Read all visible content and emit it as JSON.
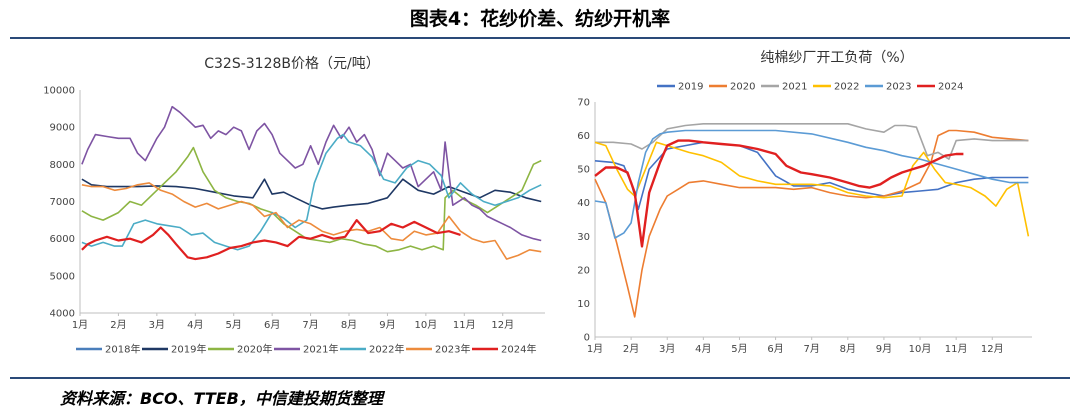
{
  "figure_title": "图表4：花纱价差、纺纱开机率",
  "source": "资料来源：BCO、TTEB，中信建投期货整理",
  "chart_data": [
    {
      "type": "line",
      "title": "C32S-3128B价格（元/吨）",
      "ylim": [
        4000,
        10000
      ],
      "yticks": [
        4000,
        5000,
        6000,
        7000,
        8000,
        9000,
        10000
      ],
      "xticks": [
        "1月",
        "2月",
        "3月",
        "4月",
        "5月",
        "6月",
        "7月",
        "8月",
        "9月",
        "10月",
        "11月",
        "12月"
      ],
      "xlim": [
        1,
        13.1
      ],
      "grid": false,
      "legend": "bottom",
      "series": [
        {
          "name": "2018年",
          "color": "#4a7ebb",
          "x": [],
          "y": []
        },
        {
          "name": "2019年",
          "color": "#1f3864",
          "x": [
            1.05,
            1.3,
            1.7,
            2.0,
            2.5,
            3.0,
            3.5,
            4.0,
            4.5,
            5.0,
            5.5,
            5.8,
            6.0,
            6.3,
            6.6,
            7.0,
            7.3,
            7.6,
            8.0,
            8.5,
            9.0,
            9.4,
            9.8,
            10.2,
            10.6,
            11.0,
            11.4,
            11.8,
            12.2,
            12.6,
            13.0
          ],
          "y": [
            7600,
            7450,
            7400,
            7400,
            7400,
            7420,
            7400,
            7350,
            7250,
            7150,
            7100,
            7600,
            7200,
            7250,
            7100,
            6900,
            6800,
            6850,
            6900,
            6950,
            7100,
            7600,
            7300,
            7200,
            7400,
            7250,
            7100,
            7300,
            7250,
            7100,
            7000
          ]
        },
        {
          "name": "2020年",
          "color": "#8db543",
          "x": [
            1.05,
            1.3,
            1.6,
            2.0,
            2.3,
            2.6,
            2.9,
            3.2,
            3.5,
            3.8,
            3.95,
            4.2,
            4.5,
            4.8,
            5.1,
            5.4,
            5.7,
            6.0,
            6.3,
            6.6,
            6.9,
            7.2,
            7.5,
            7.8,
            8.1,
            8.4,
            8.7,
            9.0,
            9.3,
            9.6,
            9.9,
            10.2,
            10.45,
            10.5,
            10.7,
            11.0,
            11.3,
            11.6,
            11.9,
            12.2,
            12.5,
            12.8,
            13.0
          ],
          "y": [
            6750,
            6600,
            6500,
            6700,
            7000,
            6900,
            7200,
            7500,
            7800,
            8200,
            8450,
            7800,
            7300,
            7100,
            7000,
            6950,
            6800,
            6700,
            6400,
            6200,
            6000,
            5950,
            5900,
            6000,
            5950,
            5850,
            5800,
            5650,
            5700,
            5800,
            5700,
            5800,
            5700,
            7100,
            7300,
            7050,
            6900,
            6700,
            6900,
            7100,
            7300,
            8000,
            8100
          ]
        },
        {
          "name": "2021年",
          "color": "#7e54a3",
          "x": [
            1.05,
            1.2,
            1.4,
            1.7,
            2.0,
            2.3,
            2.5,
            2.7,
            3.0,
            3.2,
            3.4,
            3.6,
            3.8,
            4.0,
            4.2,
            4.4,
            4.6,
            4.8,
            5.0,
            5.2,
            5.4,
            5.6,
            5.8,
            6.0,
            6.2,
            6.4,
            6.6,
            6.8,
            7.0,
            7.2,
            7.4,
            7.6,
            7.8,
            8.0,
            8.2,
            8.4,
            8.6,
            8.8,
            9.0,
            9.2,
            9.4,
            9.6,
            9.8,
            10.0,
            10.2,
            10.4,
            10.5,
            10.7,
            11.0,
            11.2,
            11.4,
            11.6,
            11.8,
            12.0,
            12.2,
            12.5,
            12.8,
            13.0
          ],
          "y": [
            8000,
            8400,
            8800,
            8750,
            8700,
            8700,
            8300,
            8100,
            8700,
            9000,
            9550,
            9400,
            9200,
            9000,
            9050,
            8700,
            8900,
            8800,
            9000,
            8900,
            8400,
            8900,
            9100,
            8800,
            8300,
            8100,
            7900,
            8000,
            8500,
            8000,
            8600,
            9050,
            8700,
            9000,
            8600,
            8800,
            8400,
            7700,
            8300,
            8100,
            7900,
            8000,
            7400,
            7600,
            7800,
            7300,
            8600,
            6900,
            7100,
            6900,
            6800,
            6600,
            6500,
            6400,
            6300,
            6100,
            6000,
            5950
          ]
        },
        {
          "name": "2022年",
          "color": "#4bacc6",
          "x": [
            1.05,
            1.3,
            1.6,
            1.9,
            2.1,
            2.4,
            2.7,
            3.0,
            3.3,
            3.6,
            3.9,
            4.2,
            4.5,
            4.8,
            5.1,
            5.4,
            5.7,
            6.0,
            6.3,
            6.6,
            6.9,
            7.1,
            7.4,
            7.7,
            7.85,
            8.0,
            8.3,
            8.6,
            8.9,
            9.2,
            9.5,
            9.8,
            10.1,
            10.4,
            10.6,
            10.9,
            11.2,
            11.5,
            11.8,
            12.1,
            12.4,
            12.7,
            13.0
          ],
          "y": [
            5900,
            5800,
            5900,
            5800,
            5800,
            6400,
            6500,
            6400,
            6350,
            6300,
            6100,
            6150,
            5900,
            5800,
            5700,
            5800,
            6200,
            6700,
            6550,
            6300,
            6500,
            7500,
            8300,
            8700,
            8800,
            8600,
            8500,
            8200,
            7600,
            7500,
            7900,
            8100,
            8000,
            7700,
            7100,
            7500,
            7200,
            7000,
            6900,
            7000,
            7100,
            7300,
            7450
          ]
        },
        {
          "name": "2023年",
          "color": "#ed8b3c",
          "x": [
            1.05,
            1.3,
            1.6,
            1.9,
            2.2,
            2.5,
            2.8,
            3.1,
            3.4,
            3.7,
            4.0,
            4.3,
            4.6,
            4.9,
            5.2,
            5.5,
            5.8,
            6.1,
            6.4,
            6.7,
            7.0,
            7.3,
            7.6,
            7.9,
            8.2,
            8.5,
            8.8,
            9.1,
            9.4,
            9.7,
            10.0,
            10.3,
            10.6,
            10.9,
            11.2,
            11.5,
            11.8,
            12.1,
            12.4,
            12.7,
            13.0
          ],
          "y": [
            7450,
            7400,
            7400,
            7300,
            7350,
            7450,
            7500,
            7300,
            7200,
            7000,
            6850,
            6950,
            6800,
            6900,
            7000,
            6900,
            6600,
            6700,
            6300,
            6500,
            6400,
            6200,
            6100,
            6200,
            6250,
            6200,
            6300,
            6000,
            5950,
            6200,
            6100,
            6150,
            6600,
            6200,
            6000,
            5900,
            5950,
            5450,
            5550,
            5700,
            5650
          ]
        },
        {
          "name": "2024年",
          "color": "#e02020",
          "x": [
            1.05,
            1.2,
            1.4,
            1.7,
            2.0,
            2.3,
            2.6,
            2.9,
            3.1,
            3.3,
            3.5,
            3.8,
            4.0,
            4.3,
            4.6,
            4.9,
            5.2,
            5.5,
            5.8,
            6.1,
            6.4,
            6.7,
            7.0,
            7.3,
            7.6,
            7.9,
            8.2,
            8.5,
            8.8,
            9.1,
            9.4,
            9.7,
            10.0,
            10.3,
            10.6,
            10.9
          ],
          "y": [
            5700,
            5850,
            5950,
            6050,
            5950,
            6000,
            5900,
            6100,
            6300,
            6100,
            5850,
            5500,
            5450,
            5500,
            5600,
            5750,
            5800,
            5900,
            5950,
            5900,
            5800,
            6050,
            6000,
            6100,
            6000,
            6050,
            6500,
            6150,
            6200,
            6400,
            6300,
            6450,
            6300,
            6150,
            6200,
            6100
          ]
        }
      ]
    },
    {
      "type": "line",
      "title": "纯棉纱厂开工负荷（%）",
      "ylim": [
        0,
        70
      ],
      "yticks": [
        0,
        10,
        20,
        30,
        40,
        50,
        60,
        70
      ],
      "xticks": [
        "1月",
        "2月",
        "3月",
        "4月",
        "5月",
        "6月",
        "7月",
        "8月",
        "9月",
        "10月",
        "11月",
        "12月"
      ],
      "xlim": [
        1,
        13.1
      ],
      "grid": false,
      "legend": "top",
      "series": [
        {
          "name": "2019",
          "color": "#4472c4",
          "x": [
            1.0,
            1.5,
            1.8,
            2.0,
            2.2,
            2.5,
            3.0,
            3.5,
            4.0,
            4.5,
            5.0,
            5.5,
            6.0,
            6.5,
            7.0,
            7.5,
            8.0,
            8.5,
            9.0,
            9.5,
            10.0,
            10.5,
            11.0,
            11.5,
            12.0,
            12.5,
            13.0
          ],
          "y": [
            52.5,
            52,
            51,
            46,
            38,
            50,
            56,
            57,
            58,
            57.5,
            57,
            55,
            48,
            45,
            45,
            46,
            44,
            43,
            42,
            43,
            43.5,
            44,
            46,
            47,
            47.5,
            47.5,
            47.5
          ]
        },
        {
          "name": "2020",
          "color": "#ed7d31",
          "x": [
            1.0,
            1.3,
            1.6,
            1.9,
            2.1,
            2.3,
            2.5,
            2.8,
            3.0,
            3.3,
            3.6,
            4.0,
            4.5,
            5.0,
            5.5,
            6.0,
            6.5,
            7.0,
            7.5,
            8.0,
            8.5,
            9.0,
            9.5,
            10.0,
            10.3,
            10.5,
            10.8,
            11.0,
            11.5,
            12.0,
            12.5,
            13.0
          ],
          "y": [
            47,
            40,
            28,
            15,
            6,
            20,
            30,
            38,
            42,
            44,
            46,
            46.5,
            45.5,
            44.5,
            44.5,
            44.5,
            44,
            44.5,
            43,
            42,
            41.5,
            42,
            43.5,
            46,
            52,
            60,
            61.5,
            61.5,
            61,
            59.5,
            59,
            58.5
          ]
        },
        {
          "name": "2021",
          "color": "#a5a5a5",
          "x": [
            1.0,
            1.5,
            2.0,
            2.3,
            2.6,
            3.0,
            3.5,
            4.0,
            5.0,
            6.0,
            7.0,
            8.0,
            8.5,
            9.0,
            9.3,
            9.6,
            9.9,
            10.2,
            10.5,
            10.8,
            11.0,
            11.5,
            12.0,
            12.5,
            13.0
          ],
          "y": [
            58,
            58,
            57.5,
            56,
            58,
            62,
            63,
            63.5,
            63.5,
            63.5,
            63.5,
            63.5,
            62,
            61,
            63,
            63,
            62.5,
            54,
            55,
            53,
            58.5,
            59,
            58.5,
            58.5,
            58.5
          ]
        },
        {
          "name": "2022",
          "color": "#ffc000",
          "x": [
            1.0,
            1.3,
            1.6,
            1.9,
            2.1,
            2.4,
            2.7,
            3.0,
            3.3,
            3.6,
            4.0,
            4.5,
            5.0,
            5.5,
            6.0,
            6.5,
            7.0,
            7.5,
            8.0,
            8.5,
            9.0,
            9.5,
            9.8,
            10.1,
            10.4,
            10.7,
            11.0,
            11.4,
            11.8,
            12.1,
            12.4,
            12.7,
            13.0
          ],
          "y": [
            58,
            57,
            50,
            44,
            42,
            50,
            58,
            57,
            56,
            55,
            54,
            52,
            48,
            46.5,
            45.5,
            45.5,
            45.5,
            45,
            43,
            42,
            41.5,
            42,
            51,
            55,
            50,
            46,
            45.5,
            44.5,
            42,
            39,
            44,
            46,
            30
          ]
        },
        {
          "name": "2023",
          "color": "#5b9bd5",
          "x": [
            1.0,
            1.3,
            1.55,
            1.8,
            2.0,
            2.2,
            2.4,
            2.6,
            2.8,
            3.0,
            3.5,
            4.0,
            5.0,
            6.0,
            7.0,
            8.0,
            8.5,
            9.0,
            9.5,
            10.0,
            10.5,
            11.0,
            11.5,
            12.0,
            12.5,
            13.0
          ],
          "y": [
            40.5,
            40,
            29.5,
            31,
            34,
            46,
            55,
            59,
            60.5,
            61,
            61.5,
            61.5,
            61.5,
            61.5,
            60.5,
            58,
            56.5,
            55.5,
            54,
            53,
            51.5,
            50,
            48.5,
            47,
            46,
            46
          ]
        },
        {
          "name": "2024",
          "color": "#e02020",
          "x": [
            1.0,
            1.3,
            1.6,
            1.9,
            2.1,
            2.3,
            2.5,
            2.8,
            3.0,
            3.3,
            3.6,
            4.0,
            4.5,
            5.0,
            5.5,
            6.0,
            6.3,
            6.7,
            7.0,
            7.5,
            8.0,
            8.3,
            8.6,
            8.9,
            9.2,
            9.5,
            9.8,
            10.1,
            10.4,
            10.7,
            11.0,
            11.2
          ],
          "y": [
            48,
            50.5,
            50.5,
            49,
            43,
            27,
            43,
            52,
            57,
            58.5,
            58.5,
            58,
            57.5,
            57,
            56,
            54.5,
            51,
            49,
            48.5,
            47.5,
            46,
            45,
            44.5,
            45.5,
            47.5,
            49,
            50,
            51,
            52.5,
            54,
            54.5,
            54.5
          ]
        }
      ]
    }
  ]
}
